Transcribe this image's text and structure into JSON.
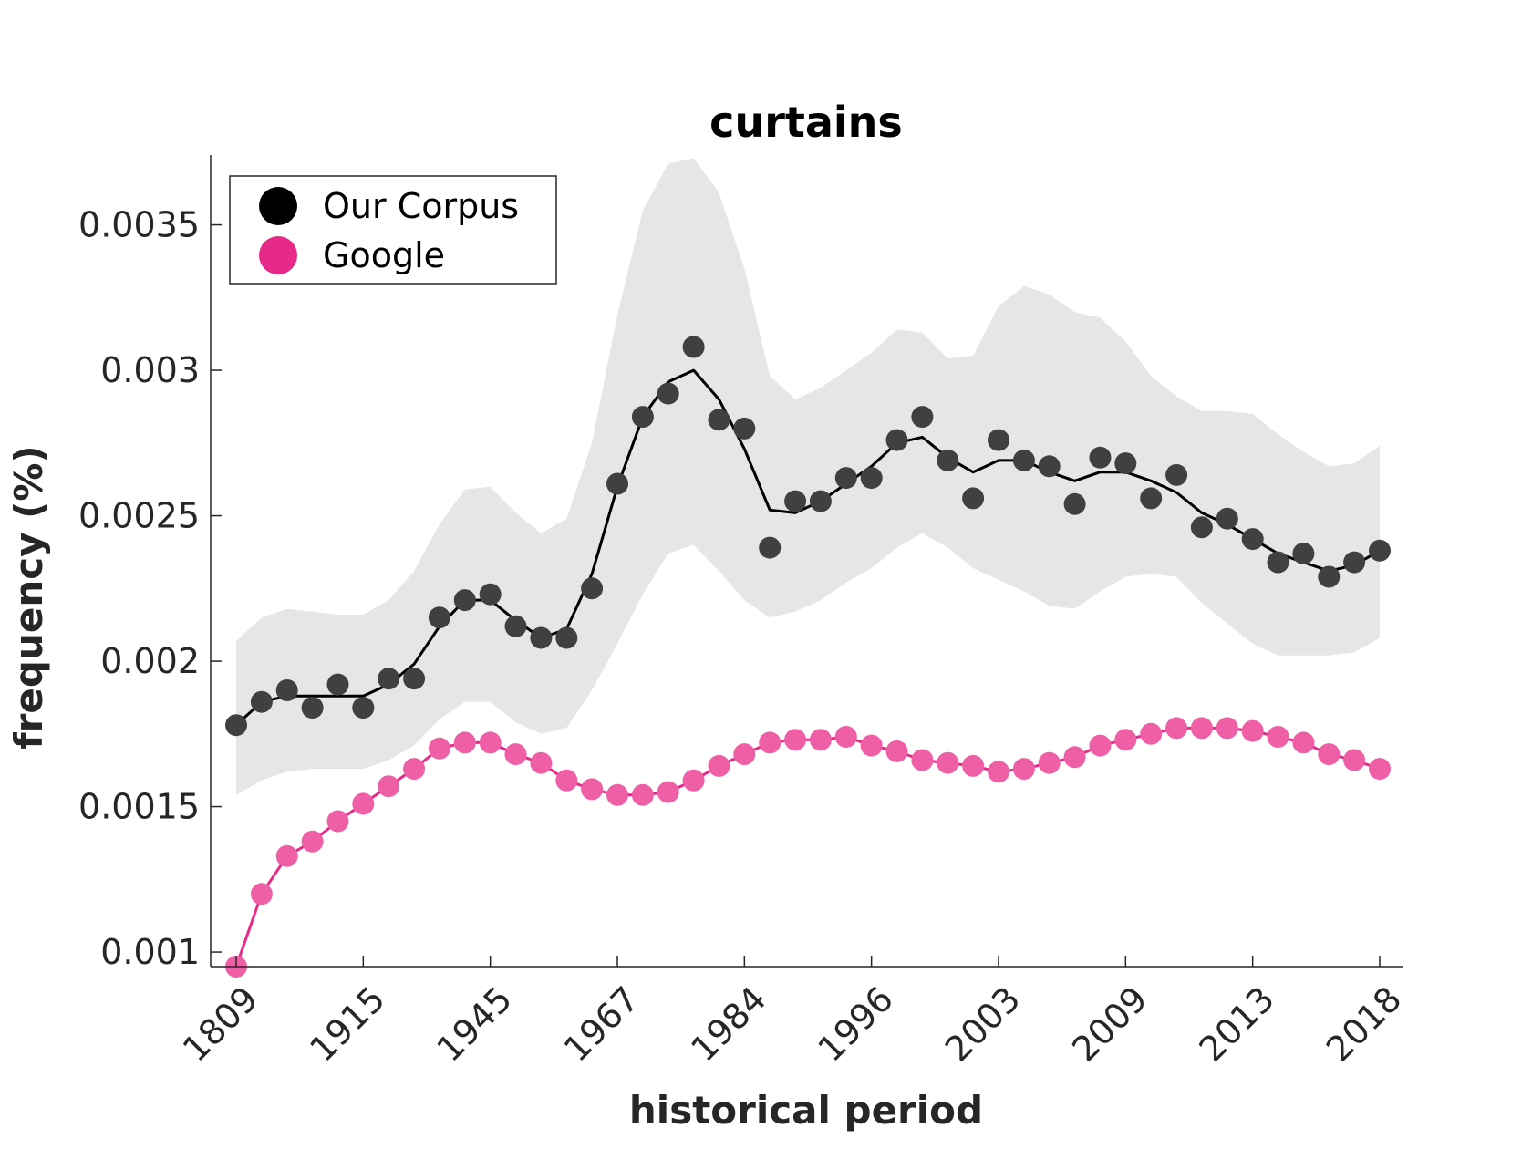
{
  "chart_data": {
    "type": "line",
    "title": "curtains",
    "xlabel": "historical period",
    "ylabel": "frequency (%)",
    "x_tick_labels": [
      "1809",
      "1915",
      "1945",
      "1967",
      "1984",
      "1996",
      "2003",
      "2009",
      "2013",
      "2018"
    ],
    "y_ticks": [
      0.001,
      0.0015,
      0.002,
      0.0025,
      0.003,
      0.0035
    ],
    "y_tick_labels": [
      "0.001",
      "0.0015",
      "0.002",
      "0.0025",
      "0.003",
      "0.0035"
    ],
    "ylim": [
      0.00095,
      0.00374
    ],
    "grid": false,
    "legend_position": "top-left",
    "series": [
      {
        "name": "Our Corpus",
        "color": "#000000",
        "marker_color": "#404040",
        "points": [
          0.00178,
          0.00186,
          0.0019,
          0.00184,
          0.00192,
          0.00184,
          0.00194,
          0.00194,
          0.00215,
          0.00221,
          0.00223,
          0.00212,
          0.00208,
          0.00208,
          0.00225,
          0.00261,
          0.00284,
          0.00292,
          0.00308,
          0.00283,
          0.0028,
          0.00239,
          0.00255,
          0.00255,
          0.00263,
          0.00263,
          0.00276,
          0.00284,
          0.00269,
          0.00256,
          0.00276,
          0.00269,
          0.00267,
          0.00254,
          0.0027,
          0.00268,
          0.00256,
          0.00264,
          0.00246,
          0.00249,
          0.00242,
          0.00234,
          0.00237,
          0.00229,
          0.00234,
          0.00238
        ],
        "trend": [
          0.00178,
          0.00186,
          0.00188,
          0.00188,
          0.00188,
          0.00188,
          0.00192,
          0.00199,
          0.00212,
          0.00221,
          0.00221,
          0.00214,
          0.00208,
          0.00211,
          0.0023,
          0.0026,
          0.00284,
          0.00296,
          0.003,
          0.0029,
          0.00273,
          0.00252,
          0.00251,
          0.00255,
          0.00261,
          0.00267,
          0.00275,
          0.00277,
          0.0027,
          0.00265,
          0.00269,
          0.00269,
          0.00265,
          0.00262,
          0.00265,
          0.00265,
          0.00262,
          0.00258,
          0.00251,
          0.00247,
          0.00242,
          0.00237,
          0.00234,
          0.00231,
          0.00233,
          0.00238
        ],
        "band_upper": [
          0.00207,
          0.00215,
          0.00218,
          0.00217,
          0.00216,
          0.00216,
          0.00221,
          0.00231,
          0.00247,
          0.00259,
          0.0026,
          0.00251,
          0.00244,
          0.00249,
          0.00275,
          0.00319,
          0.00355,
          0.00371,
          0.00373,
          0.00361,
          0.00335,
          0.00298,
          0.0029,
          0.00294,
          0.003,
          0.00306,
          0.00314,
          0.00313,
          0.00304,
          0.00305,
          0.00322,
          0.00329,
          0.00326,
          0.0032,
          0.00318,
          0.0031,
          0.00298,
          0.00291,
          0.00286,
          0.00286,
          0.00285,
          0.00278,
          0.00272,
          0.00267,
          0.00268,
          0.00274
        ],
        "band_lower": [
          0.00154,
          0.00159,
          0.00162,
          0.00163,
          0.00163,
          0.00163,
          0.00166,
          0.00171,
          0.0018,
          0.00186,
          0.00186,
          0.00179,
          0.00175,
          0.00177,
          0.0019,
          0.00206,
          0.00223,
          0.00237,
          0.0024,
          0.00231,
          0.00221,
          0.00215,
          0.00217,
          0.00221,
          0.00227,
          0.00232,
          0.00239,
          0.00244,
          0.00239,
          0.00232,
          0.00228,
          0.00224,
          0.00219,
          0.00218,
          0.00224,
          0.00229,
          0.0023,
          0.00229,
          0.0022,
          0.00213,
          0.00206,
          0.00202,
          0.00202,
          0.00202,
          0.00203,
          0.00208
        ]
      },
      {
        "name": "Google",
        "color": "#e7298a",
        "marker_color": "#ee5fa6",
        "points": [
          0.00095,
          0.0012,
          0.00133,
          0.00138,
          0.00145,
          0.00151,
          0.00157,
          0.00163,
          0.0017,
          0.00172,
          0.00172,
          0.00168,
          0.00165,
          0.00159,
          0.00156,
          0.00154,
          0.00154,
          0.00155,
          0.00159,
          0.00164,
          0.00168,
          0.00172,
          0.00173,
          0.00173,
          0.00174,
          0.00171,
          0.00169,
          0.00166,
          0.00165,
          0.00164,
          0.00162,
          0.00163,
          0.00165,
          0.00167,
          0.00171,
          0.00173,
          0.00175,
          0.00177,
          0.00177,
          0.00177,
          0.00176,
          0.00174,
          0.00172,
          0.00168,
          0.00166,
          0.00163
        ],
        "trend": [
          0.00095,
          0.0012,
          0.00133,
          0.00138,
          0.00145,
          0.00151,
          0.00157,
          0.00163,
          0.0017,
          0.00172,
          0.00172,
          0.00168,
          0.00165,
          0.00159,
          0.00156,
          0.00154,
          0.00154,
          0.00155,
          0.00159,
          0.00164,
          0.00168,
          0.00172,
          0.00173,
          0.00173,
          0.00174,
          0.00171,
          0.00169,
          0.00166,
          0.00165,
          0.00164,
          0.00162,
          0.00163,
          0.00165,
          0.00167,
          0.00171,
          0.00173,
          0.00175,
          0.00177,
          0.00177,
          0.00177,
          0.00176,
          0.00174,
          0.00172,
          0.00168,
          0.00166,
          0.00163
        ]
      }
    ]
  }
}
